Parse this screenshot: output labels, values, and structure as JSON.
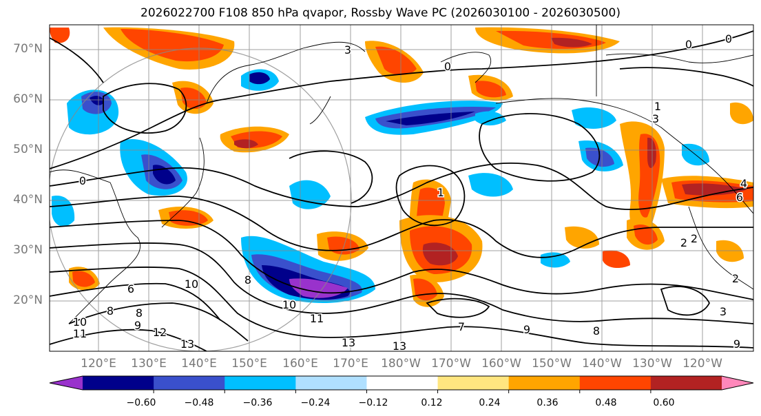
{
  "title": "2026022700 F108 850 hPa qvapor, Rossby Wave PC (2026030100 - 2026030500)",
  "map": {
    "lat_labels": [
      "70°N",
      "60°N",
      "50°N",
      "40°N",
      "30°N",
      "20°N"
    ],
    "lon_labels": [
      "120°E",
      "130°E",
      "140°E",
      "150°E",
      "160°E",
      "170°E",
      "180°W",
      "170°W",
      "160°W",
      "150°W",
      "140°W",
      "130°W",
      "120°W"
    ],
    "contour_labels": [
      "3",
      "0",
      "0",
      "0",
      "0",
      "1",
      "3",
      "1",
      "2",
      "2",
      "3",
      "4",
      "2",
      "6",
      "8",
      "10",
      "10",
      "11",
      "13",
      "13",
      "12",
      "13",
      "11",
      "10",
      "9",
      "8",
      "7",
      "6",
      "9",
      "8",
      "9",
      "8"
    ],
    "gridline_color": "#888888",
    "coastline_color": "#000000",
    "contour_color": "#000000"
  },
  "colorbar": {
    "ticks": [
      "−0.60",
      "−0.48",
      "−0.36",
      "−0.24",
      "−0.12",
      "0.12",
      "0.24",
      "0.36",
      "0.48",
      "0.60"
    ],
    "colors": [
      "#9932CC",
      "#00008B",
      "#3A50CC",
      "#00BFFF",
      "#B0E0FF",
      "#FFFFFF",
      "#FFE680",
      "#FFA500",
      "#FF4500",
      "#B22222",
      "#FF88BB"
    ]
  }
}
